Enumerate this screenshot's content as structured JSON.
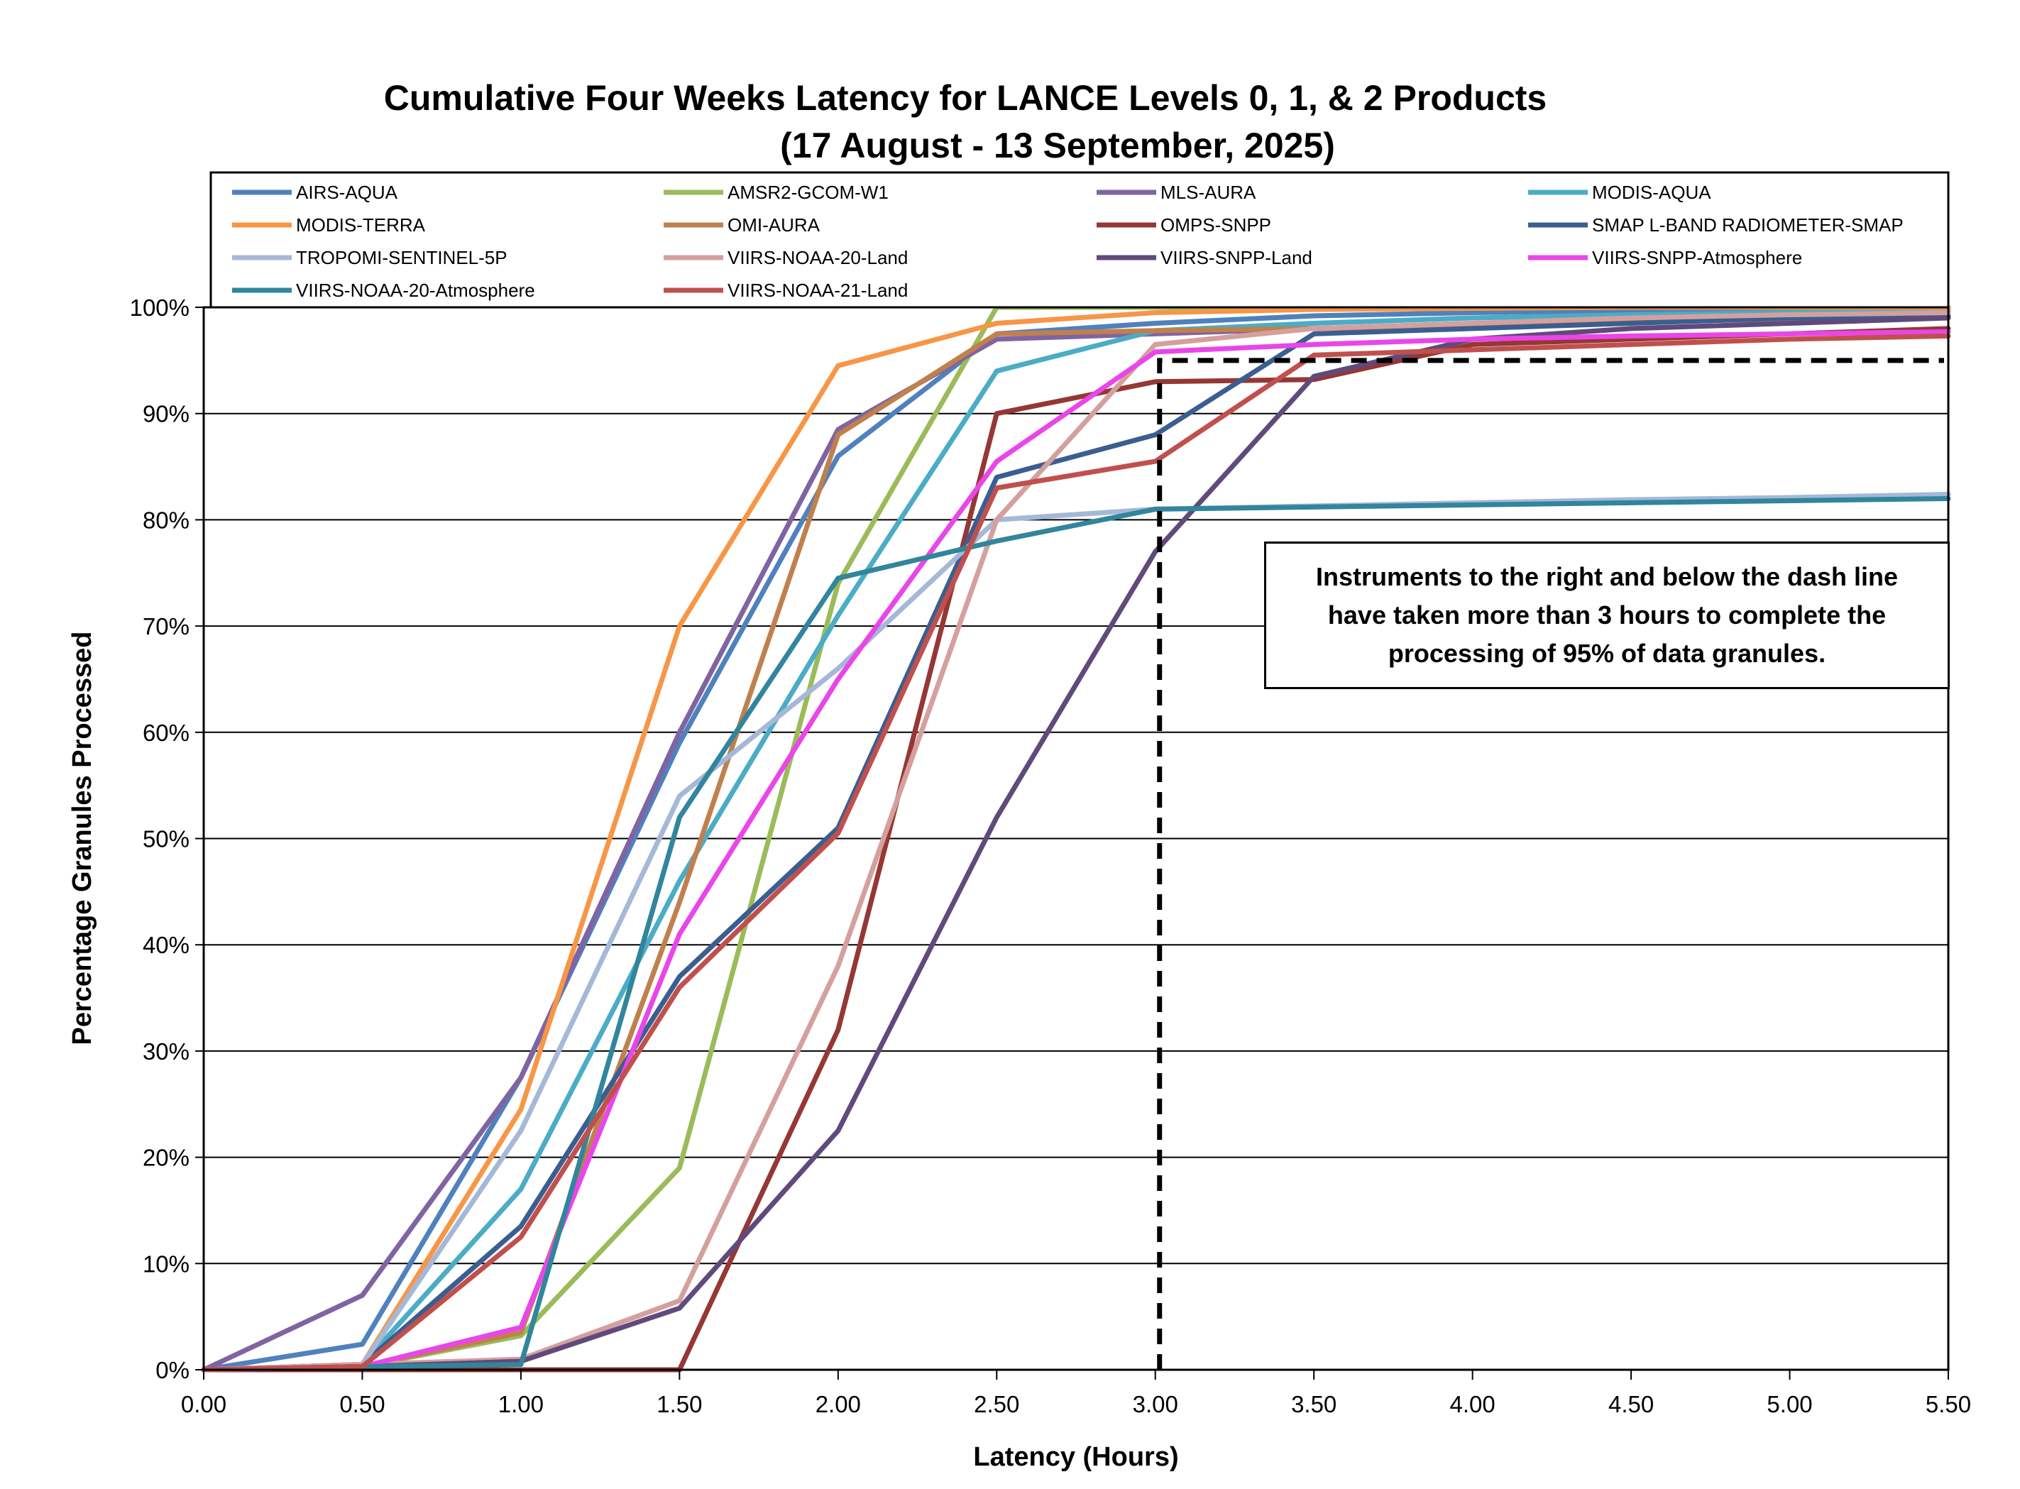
{
  "chart_data": {
    "type": "line",
    "title": "Cumulative Four Weeks Latency  for LANCE Levels 0, 1, & 2 Products",
    "subtitle": "(17  August   -  13  September,  2025)",
    "xlabel": "Latency (Hours)",
    "ylabel": "Percentage Granules Processed",
    "xlim": [
      0,
      5.5
    ],
    "ylim": [
      0,
      100
    ],
    "x_ticks": [
      "0.00",
      "0.50",
      "1.00",
      "1.50",
      "2.00",
      "2.50",
      "3.00",
      "3.50",
      "4.00",
      "4.50",
      "5.00",
      "5.50"
    ],
    "y_ticks": [
      "0%",
      "10%",
      "20%",
      "30%",
      "40%",
      "50%",
      "60%",
      "70%",
      "80%",
      "90%",
      "100%"
    ],
    "grid": "horizontal",
    "legend_position": "top",
    "x": [
      0,
      0.5,
      1,
      1.5,
      2,
      2.5,
      3,
      3.5,
      4,
      4.5,
      5,
      5.5
    ],
    "series": [
      {
        "name": "AIRS-AQUA",
        "color": "#4F81BD",
        "values": [
          0,
          2.4,
          27.5,
          59,
          86,
          97.5,
          98.5,
          99.2,
          99.5,
          99.7,
          99.8,
          99.9
        ]
      },
      {
        "name": "AMSR2-GCOM-W1",
        "color": "#9BBB59",
        "values": [
          0,
          0.3,
          3.2,
          19,
          74,
          100,
          100,
          100,
          100,
          100,
          100,
          100
        ]
      },
      {
        "name": "MLS-AURA",
        "color": "#8064A2",
        "values": [
          0,
          7,
          27.5,
          60,
          88.5,
          97,
          97.5,
          98,
          98.5,
          98.8,
          99,
          99.2
        ]
      },
      {
        "name": "MODIS-AQUA",
        "color": "#4BACC6",
        "values": [
          0,
          0.5,
          17,
          46,
          71,
          94,
          97.8,
          98.5,
          99,
          99.3,
          99.5,
          99.6
        ]
      },
      {
        "name": "MODIS-TERRA",
        "color": "#F79646",
        "values": [
          0,
          0.5,
          24.5,
          70,
          94.5,
          98.5,
          99.5,
          99.8,
          99.9,
          100,
          100,
          100
        ]
      },
      {
        "name": "OMI-AURA",
        "color": "#C0804D",
        "values": [
          0,
          0.3,
          3.5,
          44,
          88,
          97.5,
          97.8,
          98,
          98.3,
          98.6,
          98.9,
          99.1
        ]
      },
      {
        "name": "OMPS-SNPP",
        "color": "#953735",
        "values": [
          0,
          0,
          0,
          0,
          32,
          90,
          93,
          93.2,
          96.5,
          97,
          97.5,
          98
        ]
      },
      {
        "name": "SMAP L-BAND RADIOMETER-SMAP",
        "color": "#3B5E91",
        "values": [
          0,
          0.5,
          13.5,
          37,
          51,
          84,
          88,
          97.5,
          98,
          98.5,
          99,
          99.2
        ]
      },
      {
        "name": "TROPOMI-SENTINEL-5P",
        "color": "#A5B8D8",
        "values": [
          0,
          0.5,
          22.5,
          54,
          66,
          80,
          81,
          81.3,
          81.6,
          81.9,
          82.1,
          82.4
        ]
      },
      {
        "name": "VIIRS-NOAA-20-Land",
        "color": "#D4A09E",
        "values": [
          0,
          0.5,
          1,
          6.5,
          38,
          80,
          96.5,
          98,
          98.5,
          99,
          99.3,
          99.5
        ]
      },
      {
        "name": "VIIRS-SNPP-Land",
        "color": "#604A7B",
        "values": [
          0,
          0.3,
          0.8,
          5.8,
          22.5,
          52,
          77,
          93.5,
          97,
          98,
          98.5,
          99
        ]
      },
      {
        "name": "VIIRS-SNPP-Atmosphere",
        "color": "#E946E9",
        "values": [
          0,
          0.3,
          4,
          41,
          65,
          85.5,
          95.8,
          96.5,
          97,
          97.3,
          97.5,
          97.7
        ]
      },
      {
        "name": "VIIRS-NOAA-20-Atmosphere",
        "color": "#31859C",
        "values": [
          0,
          0.3,
          0.5,
          52,
          74.5,
          78,
          81,
          81.2,
          81.4,
          81.6,
          81.8,
          82
        ]
      },
      {
        "name": "VIIRS-NOAA-21-Land",
        "color": "#C0504D",
        "values": [
          0,
          0.3,
          12.5,
          36,
          50.5,
          83,
          85.5,
          95.5,
          96,
          96.5,
          97,
          97.3
        ]
      }
    ],
    "threshold": {
      "x": 3.0,
      "y": 95,
      "style": "dashed",
      "color": "#000000"
    },
    "annotation": "Instruments to the right and below the dash line have taken more than 3 hours to complete the processing of 95% of data granules."
  }
}
